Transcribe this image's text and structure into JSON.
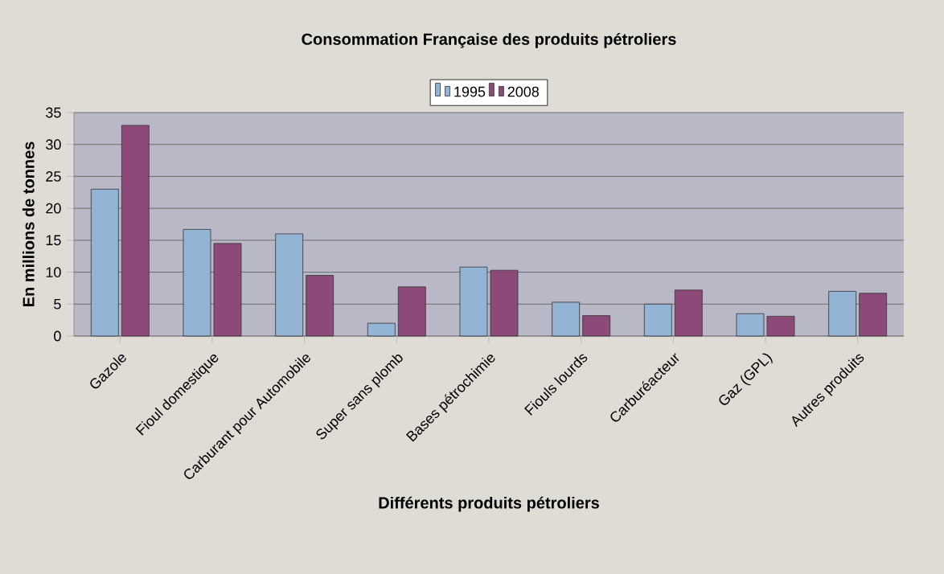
{
  "chart_data": {
    "type": "bar",
    "title": "Consommation Française des produits pétroliers",
    "xlabel": "Différents produits pétroliers",
    "ylabel": "En millions de tonnes",
    "categories": [
      "Gazole",
      "Fioul domestique",
      "Carburant pour Automobile",
      "Super sans plomb",
      "Bases pétrochimie",
      "Fiouls lourds",
      "Carburéacteur",
      "Gaz (GPL)",
      "Autres produits"
    ],
    "series": [
      {
        "name": "1995",
        "color": "#94b4d6",
        "values": [
          23,
          16.7,
          16,
          2,
          10.8,
          5.3,
          5,
          3.5,
          7
        ]
      },
      {
        "name": "2008",
        "color": "#8c4a78",
        "values": [
          33,
          14.5,
          9.5,
          7.7,
          10.3,
          3.2,
          7.2,
          3.1,
          6.7
        ]
      }
    ],
    "ylim": [
      0,
      35
    ],
    "yticks": [
      0,
      5,
      10,
      15,
      20,
      25,
      30,
      35
    ],
    "grid": "y",
    "legend": "top"
  }
}
